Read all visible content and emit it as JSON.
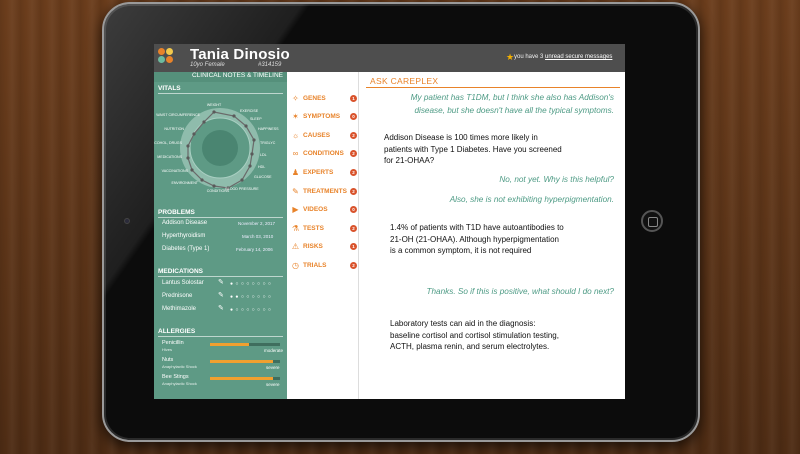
{
  "header": {
    "patient_name": "Tania Dinosio",
    "patient_sub": "10yo Female",
    "patient_id": "#314159",
    "msg_prefix": "you have 3",
    "msg_link": "unread secure messages"
  },
  "left": {
    "panel_title": "CLINICAL NOTES & TIMELINE",
    "vitals_title": "VITALS",
    "vitals_labels": [
      "WEIGHT",
      "EXERCISE",
      "SLEEP",
      "HAPPINESS",
      "TRIGLYC",
      "LDL",
      "HDL",
      "GLUCOSE",
      "BLOOD PRESSURE",
      "CONDITIONS",
      "ENVIRONMENT",
      "VACCINATIONS",
      "MEDICATIONS",
      "ALCOHOL, DRUGS",
      "NUTRITION",
      "WAIST CIRCUMFERENCE"
    ],
    "problems_title": "PROBLEMS",
    "problems": [
      {
        "name": "Addison Disease",
        "date": "November 2, 2017"
      },
      {
        "name": "Hyperthyroidism",
        "date": "March 03, 2010"
      },
      {
        "name": "Diabetes (Type 1)",
        "date": "February 14, 2006"
      }
    ],
    "medications_title": "MEDICATIONS",
    "medications": [
      {
        "name": "Lantus Solostar",
        "dots": "● ○ ○ ○ ○ ○ ○ ○"
      },
      {
        "name": "Prednisone",
        "dots": "● ● ○ ○ ○ ○ ○ ○"
      },
      {
        "name": "Methimazole",
        "dots": "● ○ ○ ○ ○ ○ ○ ○"
      }
    ],
    "allergies_title": "ALLERGIES",
    "allergies": [
      {
        "name": "Penicillin",
        "reaction": "Hives",
        "severity": "moderate",
        "level": 0.55
      },
      {
        "name": "Nuts",
        "reaction": "Anaphylactic Shock",
        "severity": "severe",
        "level": 0.9
      },
      {
        "name": "Bee Stings",
        "reaction": "Anaphylactic Shock",
        "severity": "severe",
        "level": 0.9
      }
    ]
  },
  "categories": [
    {
      "label": "GENES",
      "count": "1",
      "icon": "dna-icon",
      "glyph": "✧"
    },
    {
      "label": "SYMPTOMS",
      "count": "0",
      "icon": "person-icon",
      "glyph": "✶"
    },
    {
      "label": "CAUSES",
      "count": "2",
      "icon": "sun-icon",
      "glyph": "☼"
    },
    {
      "label": "CONDITIONS",
      "count": "2",
      "icon": "link-icon",
      "glyph": "∞"
    },
    {
      "label": "EXPERTS",
      "count": "2",
      "icon": "people-icon",
      "glyph": "♟"
    },
    {
      "label": "TREATMENTS",
      "count": "2",
      "icon": "syringe-icon",
      "glyph": "✎"
    },
    {
      "label": "VIDEOS",
      "count": "0",
      "icon": "video-icon",
      "glyph": "▶"
    },
    {
      "label": "TESTS",
      "count": "2",
      "icon": "flask-icon",
      "glyph": "⚗"
    },
    {
      "label": "RISKS",
      "count": "1",
      "icon": "warning-icon",
      "glyph": "⚠"
    },
    {
      "label": "TRIALS",
      "count": "2",
      "icon": "clock-icon",
      "glyph": "◷"
    }
  ],
  "ask": {
    "title": "ASK CAREPLEX",
    "q1": "My patient has T1DM, but I think she also has Addison's disease, but she doesn't have all the typical symptoms.",
    "a1": "Addison Disease is 100 times more likely in patients with Type 1 Diabetes. Have you screened for 21-OHAA?",
    "q2": "No, not yet.  Why is this helpful?",
    "q3": "Also, she is not exhibiting hyperpigmentation.",
    "a2": "1.4% of patients with T1D have autoantibodies to 21-OH (21-OHAA). Although hyperpigmentation is a common symptom, it is not required",
    "q4": "Thanks. So if this is positive, what should I do next?",
    "a3": "Laboratory tests can aid in the diagnosis: baseline cortisol and cortisol stimulation testing, ACTH, plasma renin, and serum electrolytes."
  },
  "colors": {
    "accent": "#e8832a",
    "panel": "#5e9a85",
    "question": "#4e9b85",
    "badge": "#d9532c"
  }
}
